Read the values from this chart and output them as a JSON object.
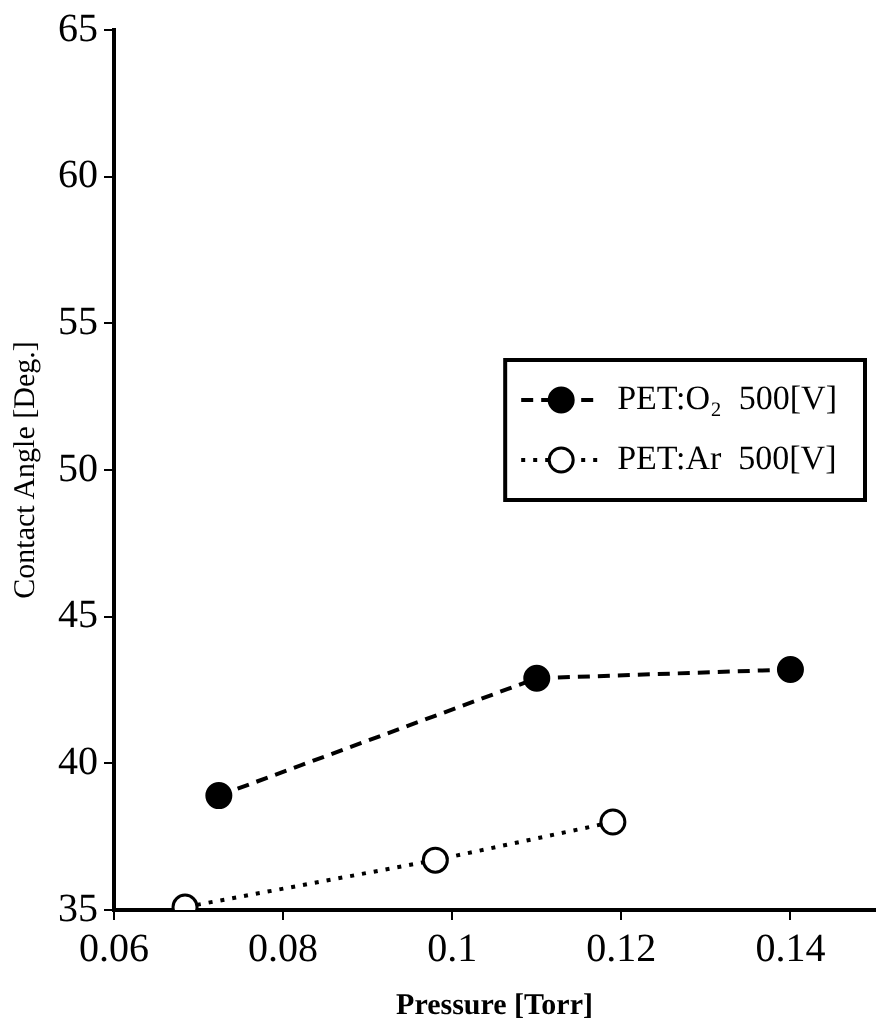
{
  "chart_data": {
    "type": "line",
    "xlabel": "Pressure [Torr]",
    "ylabel": "Contact Angle [Deg.]",
    "xlim": [
      0.06,
      0.15
    ],
    "xticks": [
      0.06,
      0.08,
      {
        "value": 0.1,
        "label": "0.1"
      },
      0.12,
      0.14
    ],
    "ylim": [
      35,
      65
    ],
    "yticks": [
      35,
      40,
      45,
      50,
      55,
      60,
      65
    ],
    "grid": false,
    "legend": "right",
    "series": [
      {
        "name": "PET:O₂  500[V]",
        "color": "#000000",
        "x": [
          0.0724,
          0.11,
          0.14
        ],
        "values": [
          38.9,
          42.9,
          43.2
        ],
        "marker": "circle",
        "line_style": "dashed"
      },
      {
        "name": "PET:Ar  500[V]",
        "color": "#000000",
        "x": [
          0.0684,
          0.098,
          0.119
        ],
        "values": [
          35.1,
          36.7,
          38.0
        ],
        "marker": "circle",
        "line_style": "dotted"
      }
    ]
  }
}
